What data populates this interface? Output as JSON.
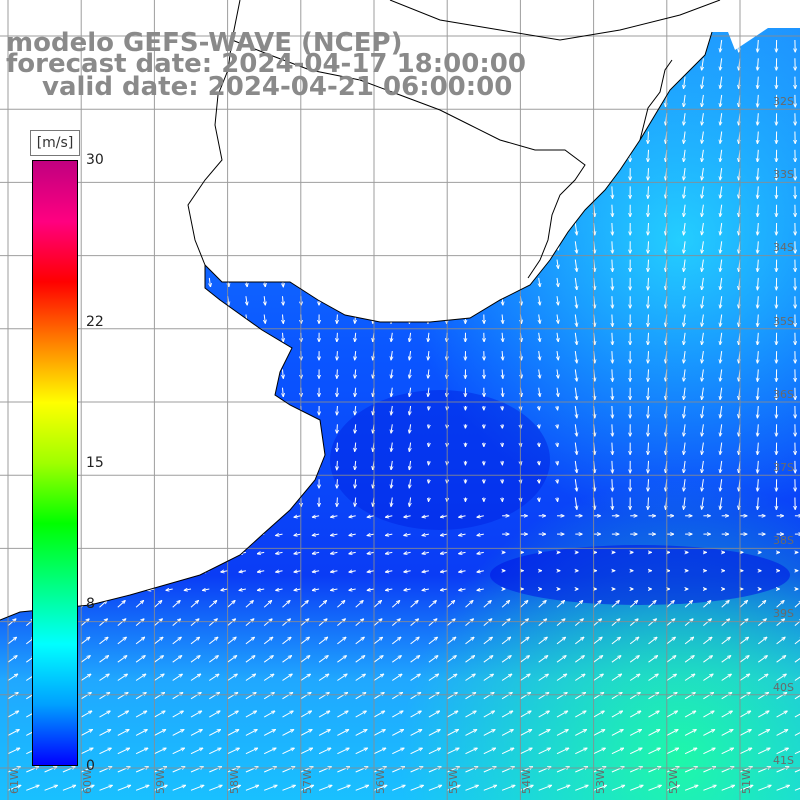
{
  "title": {
    "line1": "modelo GEFS-WAVE (NCEP)",
    "line2": "forecast date: 2024-04-17 18:00:00",
    "line3": "valid date: 2024-04-21 06:00:00"
  },
  "colorbar": {
    "unit": "[m/s]",
    "min": 0,
    "max": 30,
    "tick_labels": [
      "30",
      "22",
      "15",
      "8",
      "0"
    ],
    "tick_values": [
      30,
      22,
      15,
      8,
      0
    ],
    "colors": [
      "#0000ff",
      "#00a0ff",
      "#00ffff",
      "#00ff80",
      "#00ff00",
      "#a0ff00",
      "#ffff00",
      "#ff8000",
      "#ff0000",
      "#ff0080",
      "#c00080"
    ]
  },
  "grid": {
    "lat_labels": [
      "32S",
      "33S",
      "34S",
      "35S",
      "36S",
      "37S",
      "38S",
      "39S",
      "40S",
      "41S"
    ],
    "lon_labels": [
      "61W",
      "60W",
      "59W",
      "58W",
      "57W",
      "56W",
      "55W",
      "54W",
      "53W",
      "52W",
      "51W"
    ]
  }
}
